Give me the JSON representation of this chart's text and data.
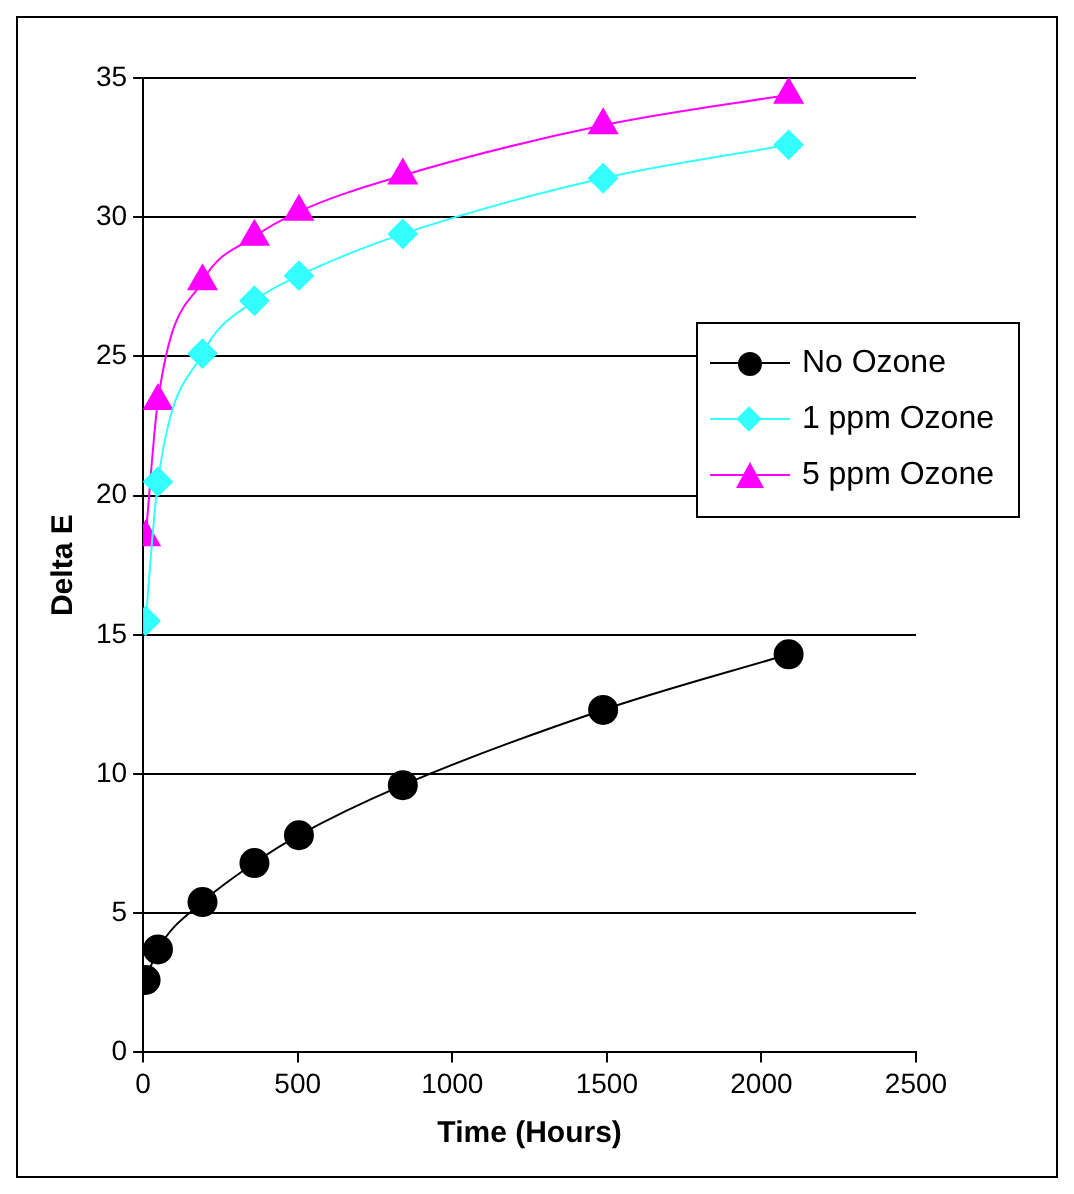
{
  "chart_data": {
    "type": "line",
    "xlabel": "Time (Hours)",
    "ylabel": "Delta E",
    "x": [
      8,
      48,
      192,
      360,
      504,
      840,
      1488,
      2088
    ],
    "series": [
      {
        "name": "No Ozone",
        "color": "#000000",
        "marker": "circle",
        "values": [
          2.6,
          3.7,
          5.4,
          6.8,
          7.8,
          9.6,
          12.3,
          14.3
        ]
      },
      {
        "name": "1 ppm Ozone",
        "color": "#33ffff",
        "marker": "diamond",
        "values": [
          15.5,
          20.5,
          25.1,
          27.0,
          27.9,
          29.4,
          31.4,
          32.6
        ]
      },
      {
        "name": "5 ppm Ozone",
        "color": "#ff00ff",
        "marker": "triangle",
        "values": [
          18.5,
          23.4,
          27.7,
          29.3,
          30.2,
          31.5,
          33.3,
          34.4
        ]
      }
    ],
    "xlim": [
      0,
      2500
    ],
    "xticks": [
      0,
      500,
      1000,
      1500,
      2000,
      2500
    ],
    "ylim": [
      0,
      35
    ],
    "yticks": [
      0,
      5,
      10,
      15,
      20,
      25,
      30,
      35
    ],
    "grid": "y",
    "legend": "right"
  }
}
